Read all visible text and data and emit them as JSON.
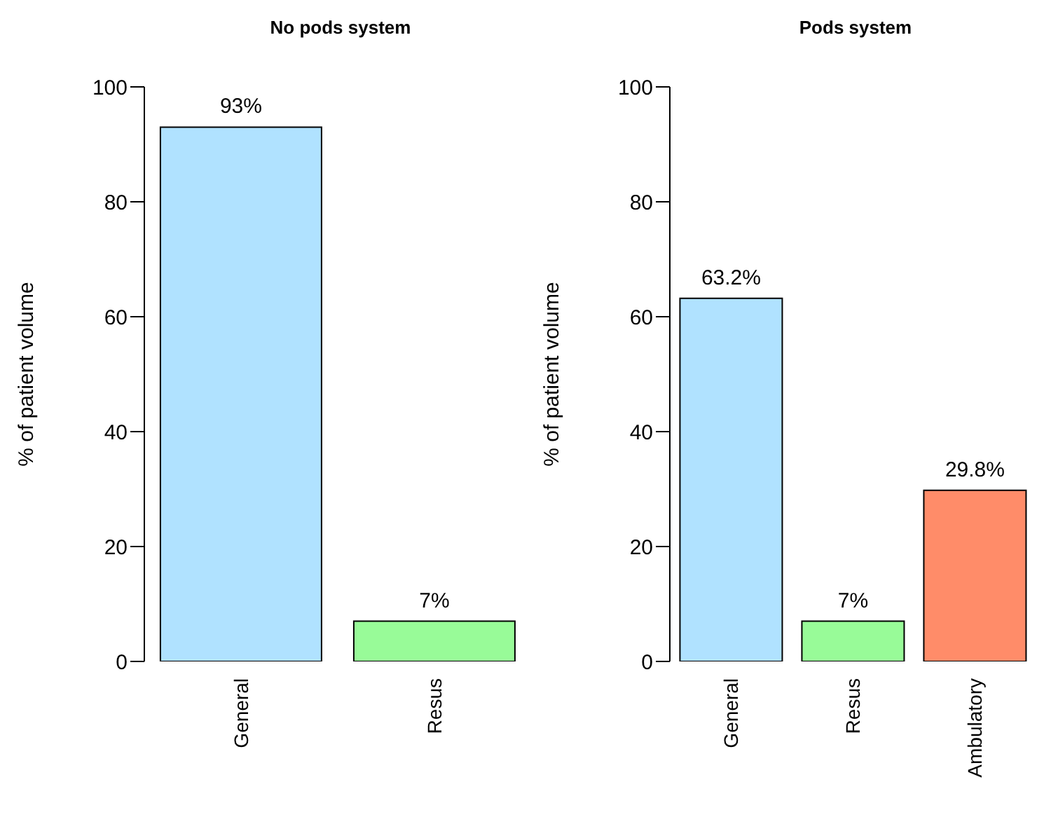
{
  "chart_data": [
    {
      "type": "bar",
      "title": "No pods system",
      "ylabel": "% of patient volume",
      "categories": [
        "General",
        "Resus"
      ],
      "values": [
        93,
        7
      ],
      "colors": [
        "#b0e2ff",
        "#98fb98"
      ],
      "ylim": [
        0,
        100
      ],
      "yticks": [
        0,
        20,
        40,
        60,
        80,
        100
      ],
      "value_labels": [
        "93%",
        "7%"
      ]
    },
    {
      "type": "bar",
      "title": "Pods system",
      "ylabel": "% of patient volume",
      "categories": [
        "General",
        "Resus",
        "Ambulatory"
      ],
      "values": [
        63.2,
        7,
        29.8
      ],
      "colors": [
        "#b0e2ff",
        "#98fb98",
        "#ff8c69"
      ],
      "ylim": [
        0,
        100
      ],
      "yticks": [
        0,
        20,
        40,
        60,
        80,
        100
      ],
      "value_labels": [
        "63.2%",
        "7%",
        "29.8%"
      ]
    }
  ]
}
